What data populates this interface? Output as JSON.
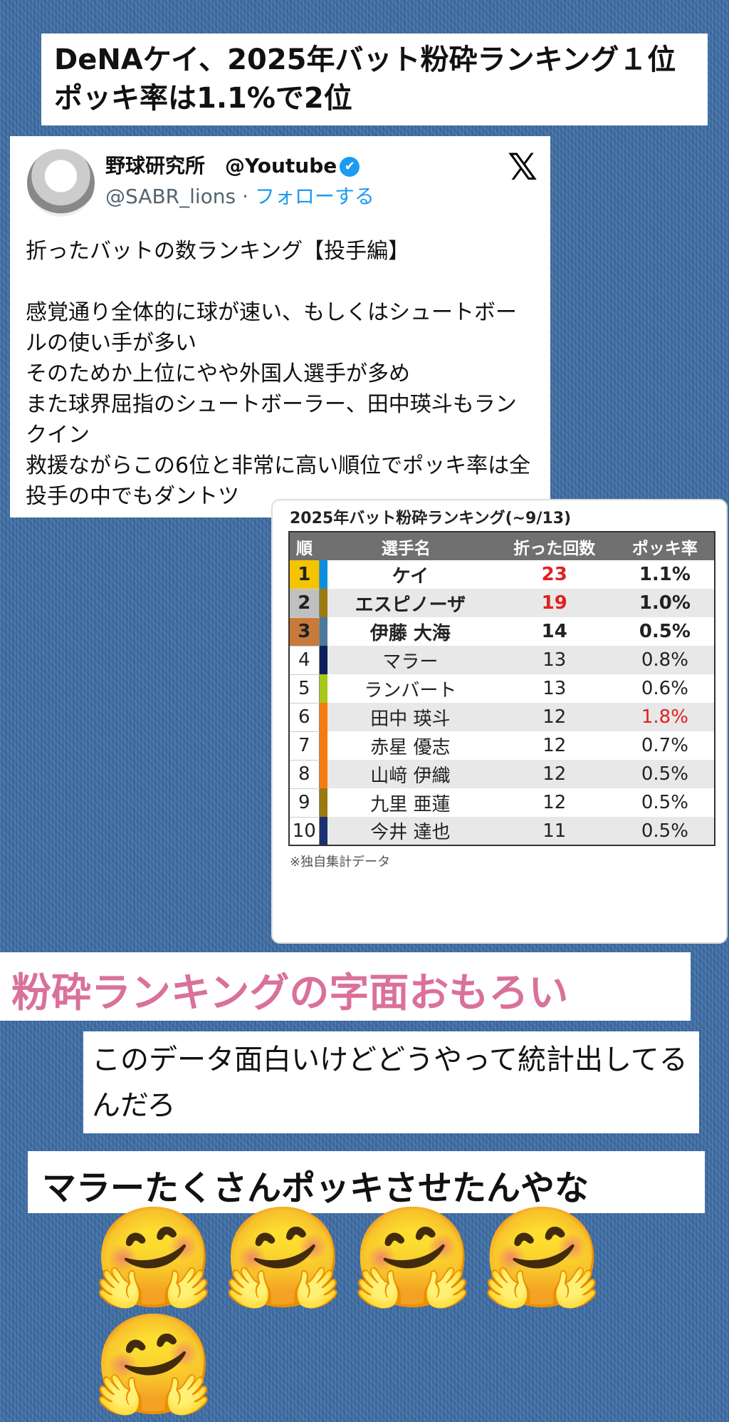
{
  "headline": {
    "line1": "DeNAケイ、2025年バット粉砕ランキング１位",
    "line2": "ポッキ率は1.1%で2位"
  },
  "tweet": {
    "name": "野球研究所　@Youtube",
    "verified_icon": "✔",
    "handle": "@SABR_lions",
    "separator": " · ",
    "follow": "フォローする",
    "x_logo": "𝕏",
    "body": "折ったバットの数ランキング【投手編】\n\n感覚通り全体的に球が速い、もしくはシュートボールの使い手が多い\nそのためか上位にやや外国人選手が多め\nまた球界屈指のシュートボーラー、田中瑛斗もランクイン\n救援ながらこの6位と非常に高い順位でポッキ率は全投手の中でもダントツ"
  },
  "table": {
    "title": "2025年バット粉砕ランキング(~9/13)",
    "headers": [
      "順",
      "選手名",
      "折った回数",
      "ポッキ率"
    ],
    "footnote": "※独自集計データ",
    "rows": [
      {
        "rank": "1",
        "name": "ケイ",
        "count": "23",
        "rate": "1.1%",
        "rank_color": "#f5c400",
        "team_color": "#0a8fe0",
        "count_red": true,
        "rate_red": false,
        "bold": true
      },
      {
        "rank": "2",
        "name": "エスピノーザ",
        "count": "19",
        "rate": "1.0%",
        "rank_color": "#c0c0c0",
        "team_color": "#9a7a10",
        "count_red": true,
        "rate_red": false,
        "bold": true
      },
      {
        "rank": "3",
        "name": "伊藤 大海",
        "count": "14",
        "rate": "0.5%",
        "rank_color": "#c77a3a",
        "team_color": "#4a7a9a",
        "count_red": false,
        "rate_red": false,
        "bold": true
      },
      {
        "rank": "4",
        "name": "マラー",
        "count": "13",
        "rate": "0.8%",
        "rank_color": "#fff",
        "team_color": "#0d1f5c",
        "count_red": false,
        "rate_red": false,
        "bold": false
      },
      {
        "rank": "5",
        "name": "ランバート",
        "count": "13",
        "rate": "0.6%",
        "rank_color": "#fff",
        "team_color": "#a8c818",
        "count_red": false,
        "rate_red": false,
        "bold": false
      },
      {
        "rank": "6",
        "name": "田中 瑛斗",
        "count": "12",
        "rate": "1.8%",
        "rank_color": "#fff",
        "team_color": "#f57a10",
        "count_red": false,
        "rate_red": true,
        "bold": false
      },
      {
        "rank": "7",
        "name": "赤星 優志",
        "count": "12",
        "rate": "0.7%",
        "rank_color": "#fff",
        "team_color": "#f57a10",
        "count_red": false,
        "rate_red": false,
        "bold": false
      },
      {
        "rank": "8",
        "name": "山﨑 伊織",
        "count": "12",
        "rate": "0.5%",
        "rank_color": "#fff",
        "team_color": "#f57a10",
        "count_red": false,
        "rate_red": false,
        "bold": false
      },
      {
        "rank": "9",
        "name": "九里 亜蓮",
        "count": "12",
        "rate": "0.5%",
        "rank_color": "#fff",
        "team_color": "#9a7a10",
        "count_red": false,
        "rate_red": false,
        "bold": false
      },
      {
        "rank": "10",
        "name": "今井 達也",
        "count": "11",
        "rate": "0.5%",
        "rank_color": "#fff",
        "team_color": "#1a3070",
        "count_red": false,
        "rate_red": false,
        "bold": false
      }
    ]
  },
  "comments": [
    "粉砕ランキングの字面おもろい",
    "このデータ面白いけどどうやって統計出してるんだろ",
    "マラーたくさんポッキさせたんやな"
  ],
  "emojis": "🤗🤗🤗🤗🤗",
  "colors": {
    "red": "#e02020",
    "pink": "#d9719a",
    "link": "#1d9bf0"
  }
}
